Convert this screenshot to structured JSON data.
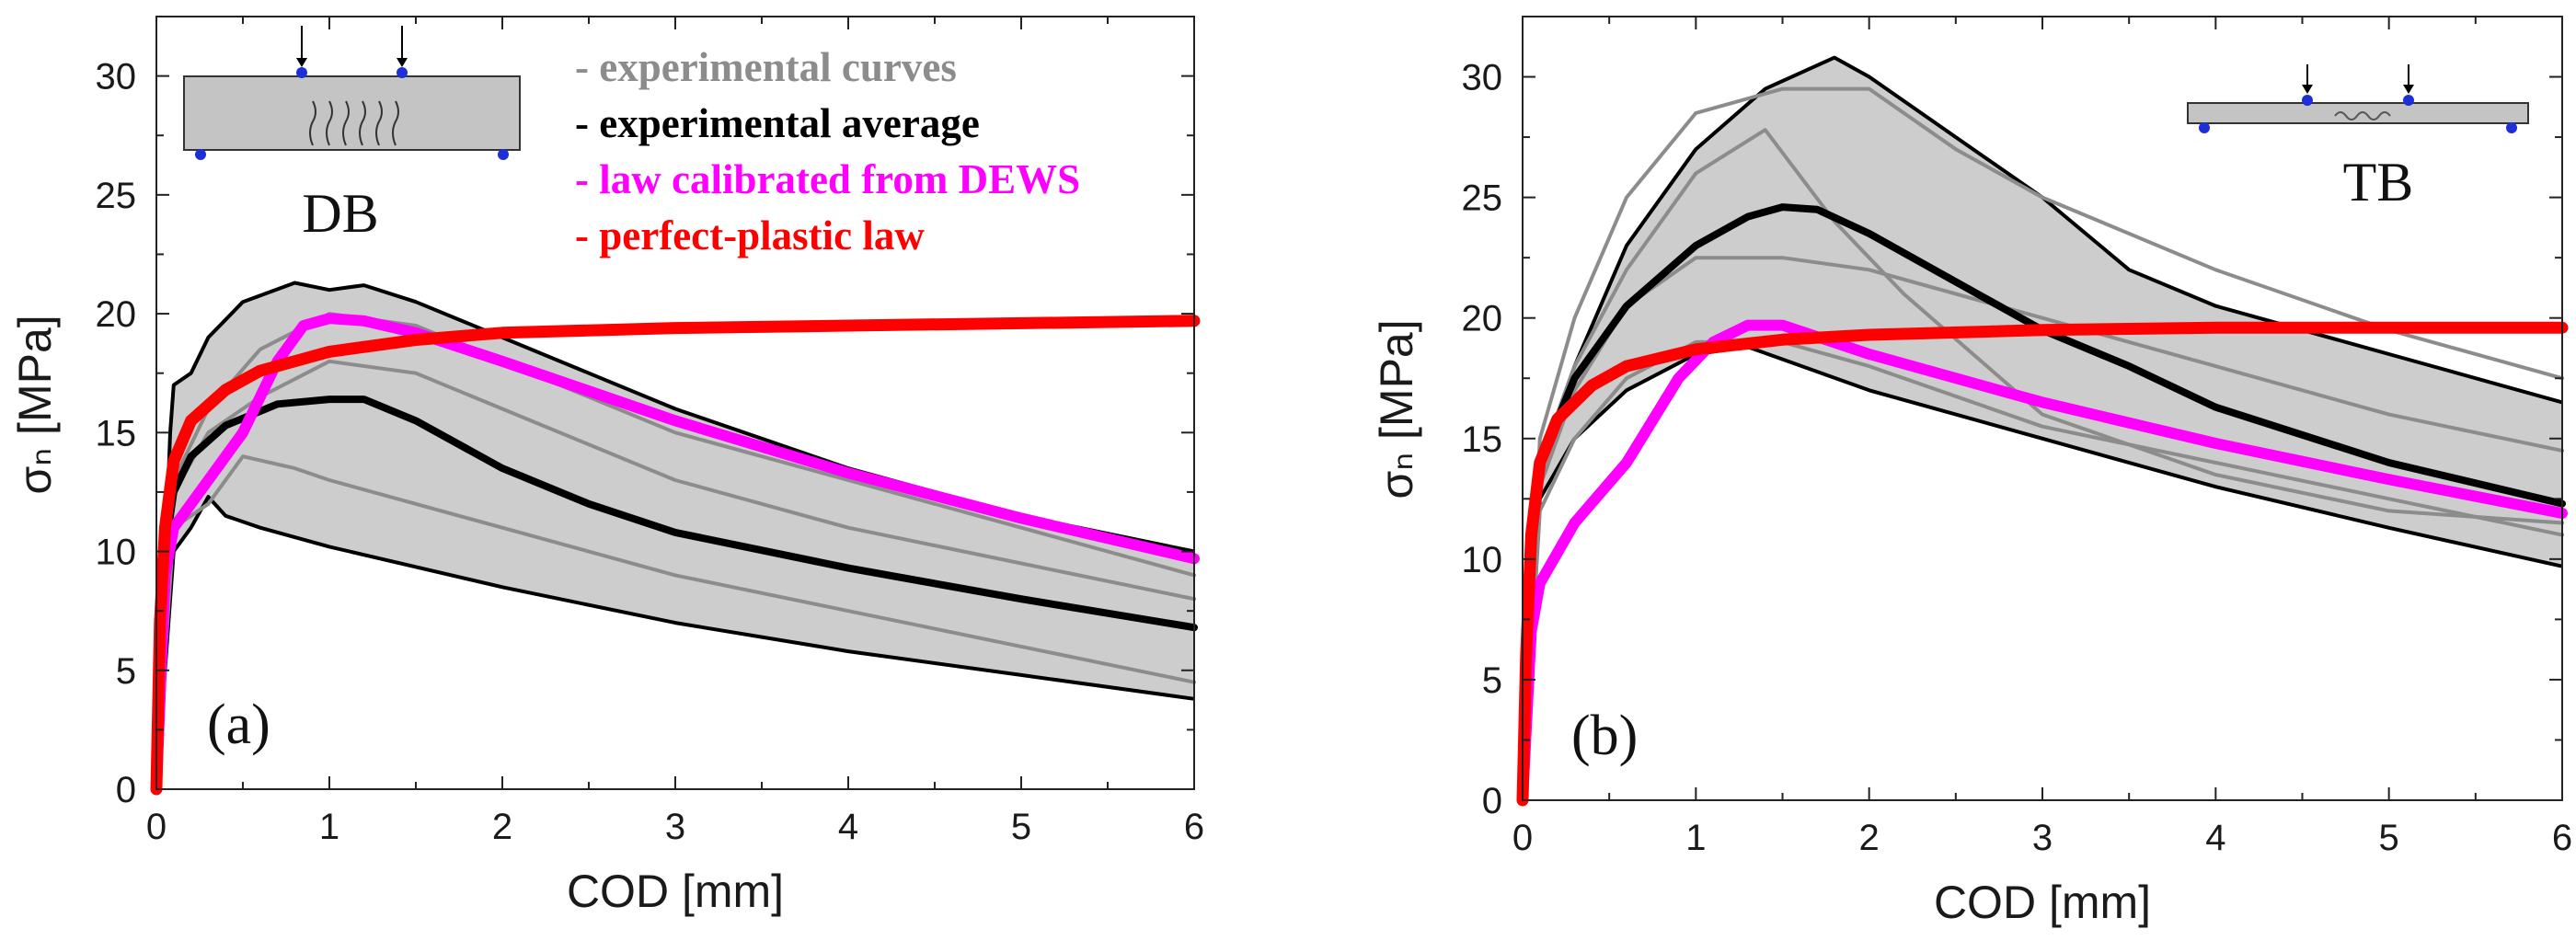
{
  "chart_data": [
    {
      "type": "line",
      "panel_label": "(a)",
      "specimen_label": "DB",
      "xlabel": "COD [mm]",
      "ylabel": "σₙ [MPa]",
      "xlim": [
        0,
        6
      ],
      "ylim": [
        0,
        32.5
      ],
      "xticks": [
        0,
        1,
        2,
        3,
        4,
        5,
        6
      ],
      "yticks": [
        0,
        5,
        10,
        15,
        20,
        25,
        30
      ],
      "legend": {
        "placement": "top-right",
        "entries": [
          {
            "label": "- experimental curves",
            "color": "#8c8c8c"
          },
          {
            "label": "- experimental average",
            "color": "#000000"
          },
          {
            "label": "- law calibrated from DEWS",
            "color": "#ff00ff"
          },
          {
            "label": "- perfect-plastic law",
            "color": "#ff0000"
          }
        ]
      },
      "envelope": {
        "upper": [
          [
            0,
            0
          ],
          [
            0.08,
            15
          ],
          [
            0.1,
            17
          ],
          [
            0.2,
            17.5
          ],
          [
            0.3,
            19
          ],
          [
            0.5,
            20.5
          ],
          [
            0.8,
            21.3
          ],
          [
            1.0,
            21
          ],
          [
            1.2,
            21.2
          ],
          [
            1.5,
            20.5
          ],
          [
            2.0,
            19
          ],
          [
            3.0,
            16
          ],
          [
            4.0,
            13.5
          ],
          [
            5.0,
            11.5
          ],
          [
            6.0,
            10
          ]
        ],
        "lower": [
          [
            0,
            0
          ],
          [
            0.1,
            10
          ],
          [
            0.2,
            11
          ],
          [
            0.3,
            12.3
          ],
          [
            0.4,
            11.5
          ],
          [
            0.6,
            11
          ],
          [
            1.0,
            10.2
          ],
          [
            2.0,
            8.5
          ],
          [
            3.0,
            7
          ],
          [
            4.0,
            5.8
          ],
          [
            5.0,
            4.8
          ],
          [
            6.0,
            3.8
          ]
        ]
      },
      "series": [
        {
          "name": "experimental curves",
          "color": "#8c8c8c",
          "width": 4,
          "points": [
            [
              0,
              0
            ],
            [
              0.1,
              12.5
            ],
            [
              0.3,
              15
            ],
            [
              0.6,
              16.5
            ],
            [
              1.0,
              18
            ],
            [
              1.5,
              17.5
            ],
            [
              2.0,
              16
            ],
            [
              3.0,
              13
            ],
            [
              4.0,
              11
            ],
            [
              5.0,
              9.5
            ],
            [
              6.0,
              8
            ]
          ]
        },
        {
          "name": "experimental curves",
          "color": "#8c8c8c",
          "width": 4,
          "points": [
            [
              0,
              0
            ],
            [
              0.1,
              11
            ],
            [
              0.3,
              12
            ],
            [
              0.5,
              14
            ],
            [
              0.8,
              13.5
            ],
            [
              1.0,
              13
            ],
            [
              2.0,
              11
            ],
            [
              3.0,
              9
            ],
            [
              4.0,
              7.5
            ],
            [
              5.0,
              6
            ],
            [
              6.0,
              4.5
            ]
          ]
        },
        {
          "name": "experimental curves",
          "color": "#8c8c8c",
          "width": 4,
          "points": [
            [
              0,
              0
            ],
            [
              0.1,
              13
            ],
            [
              0.3,
              16
            ],
            [
              0.6,
              18.5
            ],
            [
              1.0,
              20
            ],
            [
              1.5,
              19.5
            ],
            [
              2.0,
              18
            ],
            [
              3.0,
              15
            ],
            [
              4.0,
              13
            ],
            [
              5.0,
              11
            ],
            [
              6.0,
              9
            ]
          ]
        },
        {
          "name": "experimental average",
          "color": "#000000",
          "width": 8,
          "points": [
            [
              0,
              0
            ],
            [
              0.05,
              10
            ],
            [
              0.1,
              12.5
            ],
            [
              0.2,
              14
            ],
            [
              0.4,
              15.3
            ],
            [
              0.7,
              16.2
            ],
            [
              1.0,
              16.4
            ],
            [
              1.2,
              16.4
            ],
            [
              1.5,
              15.5
            ],
            [
              2.0,
              13.5
            ],
            [
              2.5,
              12
            ],
            [
              3.0,
              10.8
            ],
            [
              4.0,
              9.3
            ],
            [
              5.0,
              8
            ],
            [
              6.0,
              6.8
            ]
          ]
        },
        {
          "name": "law calibrated from DEWS",
          "color": "#ff00ff",
          "width": 12,
          "points": [
            [
              0,
              0
            ],
            [
              0.05,
              9
            ],
            [
              0.1,
              11
            ],
            [
              0.3,
              13
            ],
            [
              0.5,
              15
            ],
            [
              0.7,
              18
            ],
            [
              0.85,
              19.5
            ],
            [
              1.0,
              19.8
            ],
            [
              1.2,
              19.7
            ],
            [
              1.5,
              19.2
            ],
            [
              2.0,
              18
            ],
            [
              3.0,
              15.5
            ],
            [
              4.0,
              13.3
            ],
            [
              5.0,
              11.4
            ],
            [
              6.0,
              9.7
            ]
          ]
        },
        {
          "name": "perfect-plastic law",
          "color": "#ff0000",
          "width": 13,
          "points": [
            [
              0,
              0
            ],
            [
              0.02,
              7
            ],
            [
              0.05,
              11
            ],
            [
              0.1,
              13.8
            ],
            [
              0.2,
              15.5
            ],
            [
              0.4,
              16.8
            ],
            [
              0.6,
              17.6
            ],
            [
              1.0,
              18.4
            ],
            [
              1.5,
              18.9
            ],
            [
              2.0,
              19.2
            ],
            [
              3.0,
              19.4
            ],
            [
              4.0,
              19.5
            ],
            [
              5.0,
              19.6
            ],
            [
              6.0,
              19.7
            ]
          ]
        }
      ]
    },
    {
      "type": "line",
      "panel_label": "(b)",
      "specimen_label": "TB",
      "xlabel": "COD [mm]",
      "ylabel": "σₙ [MPa]",
      "xlim": [
        0,
        6
      ],
      "ylim": [
        0,
        32.5
      ],
      "xticks": [
        0,
        1,
        2,
        3,
        4,
        5,
        6
      ],
      "yticks": [
        0,
        5,
        10,
        15,
        20,
        25,
        30
      ],
      "envelope": {
        "upper": [
          [
            0,
            0
          ],
          [
            0.05,
            12
          ],
          [
            0.1,
            14
          ],
          [
            0.3,
            18
          ],
          [
            0.6,
            23
          ],
          [
            1.0,
            27
          ],
          [
            1.4,
            29.5
          ],
          [
            1.8,
            30.8
          ],
          [
            2.0,
            30
          ],
          [
            2.5,
            27.5
          ],
          [
            3.0,
            25
          ],
          [
            3.5,
            22
          ],
          [
            4.0,
            20.5
          ],
          [
            5.0,
            18.5
          ],
          [
            6.0,
            16.5
          ]
        ],
        "lower": [
          [
            0,
            0
          ],
          [
            0.1,
            12.5
          ],
          [
            0.3,
            15
          ],
          [
            0.6,
            17
          ],
          [
            1.0,
            18.5
          ],
          [
            1.3,
            18.8
          ],
          [
            2.0,
            17
          ],
          [
            3.0,
            15
          ],
          [
            4.0,
            13
          ],
          [
            5.0,
            11.3
          ],
          [
            6.0,
            9.7
          ]
        ]
      },
      "series": [
        {
          "name": "experimental curves",
          "color": "#8c8c8c",
          "width": 4,
          "points": [
            [
              0,
              0
            ],
            [
              0.1,
              14
            ],
            [
              0.3,
              18
            ],
            [
              0.6,
              22
            ],
            [
              1.0,
              26
            ],
            [
              1.4,
              27.8
            ],
            [
              1.8,
              24
            ],
            [
              2.2,
              21
            ],
            [
              3.0,
              16
            ],
            [
              4.0,
              13.5
            ],
            [
              5.0,
              12
            ],
            [
              6.0,
              11.5
            ]
          ]
        },
        {
          "name": "experimental curves",
          "color": "#8c8c8c",
          "width": 4,
          "points": [
            [
              0,
              0
            ],
            [
              0.1,
              15
            ],
            [
              0.3,
              20
            ],
            [
              0.6,
              25
            ],
            [
              1.0,
              28.5
            ],
            [
              1.5,
              29.5
            ],
            [
              2.0,
              29.5
            ],
            [
              2.5,
              27
            ],
            [
              3.0,
              25
            ],
            [
              4.0,
              22
            ],
            [
              5.0,
              19.5
            ],
            [
              6.0,
              17.5
            ]
          ]
        },
        {
          "name": "experimental curves",
          "color": "#8c8c8c",
          "width": 4,
          "points": [
            [
              0,
              0
            ],
            [
              0.1,
              13
            ],
            [
              0.3,
              17
            ],
            [
              0.6,
              20.5
            ],
            [
              1.0,
              22.5
            ],
            [
              1.5,
              22.5
            ],
            [
              2.0,
              22
            ],
            [
              3.0,
              20
            ],
            [
              4.0,
              18
            ],
            [
              5.0,
              16
            ],
            [
              6.0,
              14.5
            ]
          ]
        },
        {
          "name": "experimental curves",
          "color": "#8c8c8c",
          "width": 4,
          "points": [
            [
              0,
              0
            ],
            [
              0.1,
              12
            ],
            [
              0.3,
              15
            ],
            [
              0.6,
              17.5
            ],
            [
              1.0,
              19
            ],
            [
              1.5,
              19
            ],
            [
              2.0,
              18
            ],
            [
              3.0,
              15.5
            ],
            [
              4.0,
              14
            ],
            [
              5.0,
              12.5
            ],
            [
              6.0,
              11
            ]
          ]
        },
        {
          "name": "experimental average",
          "color": "#000000",
          "width": 8,
          "points": [
            [
              0,
              0
            ],
            [
              0.05,
              10
            ],
            [
              0.1,
              14
            ],
            [
              0.3,
              17.5
            ],
            [
              0.6,
              20.5
            ],
            [
              1.0,
              23
            ],
            [
              1.3,
              24.2
            ],
            [
              1.5,
              24.6
            ],
            [
              1.7,
              24.5
            ],
            [
              2.0,
              23.5
            ],
            [
              2.5,
              21.5
            ],
            [
              3.0,
              19.5
            ],
            [
              3.5,
              18
            ],
            [
              4.0,
              16.3
            ],
            [
              5.0,
              14
            ],
            [
              6.0,
              12.3
            ]
          ]
        },
        {
          "name": "law calibrated from DEWS",
          "color": "#ff00ff",
          "width": 12,
          "points": [
            [
              0,
              0
            ],
            [
              0.05,
              7
            ],
            [
              0.1,
              9
            ],
            [
              0.3,
              11.5
            ],
            [
              0.6,
              14
            ],
            [
              0.9,
              17.5
            ],
            [
              1.1,
              19
            ],
            [
              1.3,
              19.7
            ],
            [
              1.5,
              19.7
            ],
            [
              2.0,
              18.5
            ],
            [
              3.0,
              16.5
            ],
            [
              4.0,
              14.8
            ],
            [
              5.0,
              13.3
            ],
            [
              6.0,
              11.9
            ]
          ]
        },
        {
          "name": "perfect-plastic law",
          "color": "#ff0000",
          "width": 13,
          "points": [
            [
              0,
              0
            ],
            [
              0.02,
              6
            ],
            [
              0.05,
              11
            ],
            [
              0.1,
              14
            ],
            [
              0.2,
              15.8
            ],
            [
              0.4,
              17.2
            ],
            [
              0.6,
              18
            ],
            [
              1.0,
              18.7
            ],
            [
              1.5,
              19.1
            ],
            [
              2.0,
              19.3
            ],
            [
              3.0,
              19.5
            ],
            [
              4.0,
              19.6
            ],
            [
              5.0,
              19.6
            ],
            [
              6.0,
              19.6
            ]
          ]
        }
      ]
    }
  ]
}
